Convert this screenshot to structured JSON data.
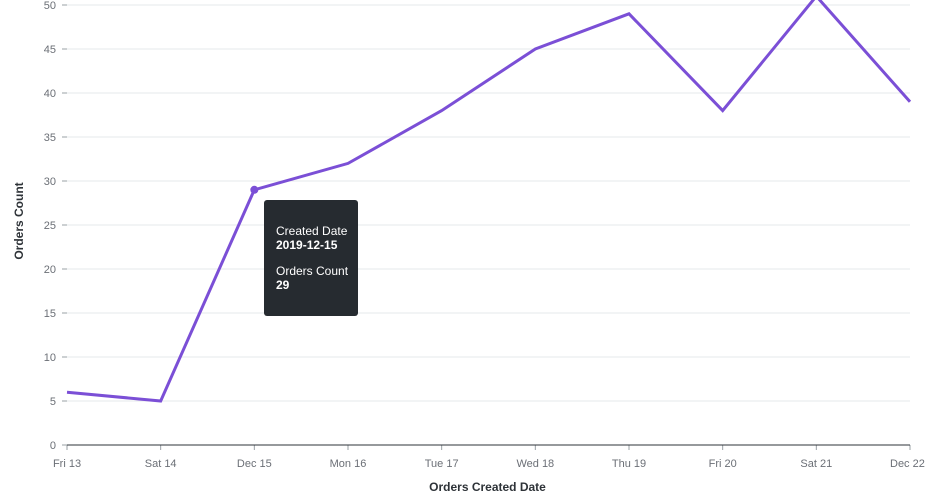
{
  "chart_data": {
    "type": "line",
    "title": "",
    "xlabel": "Orders Created Date",
    "ylabel": "Orders Count",
    "categories": [
      "Fri 13",
      "Sat 14",
      "Dec 15",
      "Mon 16",
      "Tue 17",
      "Wed 18",
      "Thu 19",
      "Fri 20",
      "Sat 21",
      "Dec 22"
    ],
    "x_dates": [
      "2019-12-13",
      "2019-12-14",
      "2019-12-15",
      "2019-12-16",
      "2019-12-17",
      "2019-12-18",
      "2019-12-19",
      "2019-12-20",
      "2019-12-21",
      "2019-12-22"
    ],
    "series": [
      {
        "values": [
          6,
          5,
          29,
          32,
          38,
          45,
          49,
          38,
          51,
          39
        ],
        "color": "#7b4fd6"
      }
    ],
    "ylim": [
      0,
      50
    ],
    "y_ticks": [
      "0",
      "5",
      "10",
      "15",
      "20",
      "25",
      "30",
      "35",
      "40",
      "45",
      "50"
    ],
    "grid": true,
    "legend": "none"
  },
  "tooltip": {
    "key1": "Created Date",
    "val1": "2019-12-15",
    "key2": "Orders Count",
    "val2": "29",
    "highlight_index": 2
  }
}
